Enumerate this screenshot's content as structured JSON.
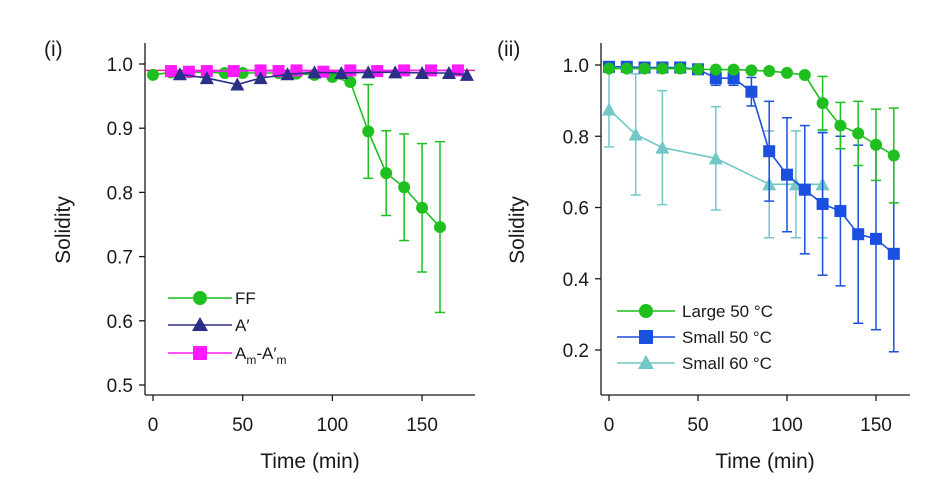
{
  "chart_data": [
    {
      "type": "line",
      "panel_label": "(i)",
      "xlabel": "Time (min)",
      "ylabel": "Solidity",
      "xlim": [
        -5,
        180
      ],
      "ylim": [
        0.48,
        1.02
      ],
      "xticks": [
        0,
        50,
        100,
        150
      ],
      "yticks": [
        0.5,
        0.6,
        0.7,
        0.8,
        0.9,
        1.0
      ],
      "reference_line": {
        "y": 0.99,
        "color": "#e8209a"
      },
      "legend_position": "bottom-left",
      "series": [
        {
          "name": "FF",
          "marker": "circle",
          "color": "#1fbf1f",
          "x": [
            0,
            10,
            20,
            30,
            40,
            50,
            60,
            70,
            80,
            90,
            100,
            110,
            120,
            130,
            140,
            150,
            160
          ],
          "y": [
            0.983,
            0.987,
            0.987,
            0.987,
            0.986,
            0.986,
            0.986,
            0.986,
            0.985,
            0.983,
            0.98,
            0.972,
            0.895,
            0.83,
            0.808,
            0.776,
            0.746
          ],
          "err": [
            0,
            0,
            0,
            0,
            0,
            0,
            0,
            0,
            0,
            0,
            0,
            0,
            0.073,
            0.066,
            0.083,
            0.1,
            0.133
          ]
        },
        {
          "name": "A′",
          "marker": "triangle",
          "color": "#2b2f86",
          "x": [
            15,
            30,
            47,
            60,
            75,
            90,
            105,
            120,
            135,
            150,
            165,
            175
          ],
          "y": [
            0.984,
            0.978,
            0.968,
            0.978,
            0.984,
            0.987,
            0.986,
            0.987,
            0.987,
            0.986,
            0.986,
            0.983
          ],
          "err": [
            0,
            0,
            0,
            0,
            0,
            0,
            0,
            0,
            0,
            0,
            0,
            0
          ]
        },
        {
          "name": "Am-A′m",
          "marker": "square",
          "color": "#ff1aff",
          "x": [
            10,
            20,
            30,
            45,
            60,
            70,
            80,
            95,
            110,
            125,
            140,
            155,
            170
          ],
          "y": [
            0.989,
            0.988,
            0.989,
            0.989,
            0.99,
            0.989,
            0.99,
            0.988,
            0.99,
            0.989,
            0.99,
            0.99,
            0.99
          ],
          "err": [
            0,
            0,
            0,
            0,
            0,
            0,
            0,
            0,
            0,
            0,
            0,
            0,
            0
          ]
        }
      ],
      "legend": [
        {
          "main": "FF",
          "sub1": "",
          "mid": "",
          "sub2": ""
        },
        {
          "main": "A′",
          "sub1": "",
          "mid": "",
          "sub2": ""
        },
        {
          "main": "A",
          "sub1": "m",
          "mid": "-A′",
          "sub2": "m"
        }
      ]
    },
    {
      "type": "line",
      "panel_label": "(ii)",
      "xlabel": "Time (min)",
      "ylabel": "Solidity",
      "xlim": [
        -5,
        170
      ],
      "ylim": [
        0.11,
        1.02
      ],
      "xticks": [
        0,
        50,
        100,
        150
      ],
      "yticks": [
        0.2,
        0.4,
        0.6,
        0.8,
        1.0
      ],
      "legend_position": "bottom-left",
      "series": [
        {
          "name": "Large 50 °C",
          "marker": "circle",
          "color": "#1fbf1f",
          "x": [
            0,
            10,
            20,
            30,
            40,
            50,
            60,
            70,
            80,
            90,
            100,
            110,
            120,
            130,
            140,
            150,
            160
          ],
          "y": [
            0.99,
            0.99,
            0.99,
            0.99,
            0.99,
            0.988,
            0.987,
            0.987,
            0.985,
            0.983,
            0.978,
            0.972,
            0.893,
            0.83,
            0.808,
            0.776,
            0.746
          ],
          "err": [
            0,
            0,
            0,
            0,
            0,
            0,
            0,
            0,
            0,
            0,
            0,
            0,
            0.075,
            0.065,
            0.09,
            0.1,
            0.133
          ]
        },
        {
          "name": "Small 50 °C",
          "marker": "square",
          "color": "#1a4fe0",
          "x": [
            0,
            10,
            20,
            30,
            40,
            50,
            60,
            70,
            80,
            90,
            100,
            110,
            120,
            130,
            140,
            150,
            160
          ],
          "y": [
            0.995,
            0.995,
            0.993,
            0.993,
            0.993,
            0.988,
            0.963,
            0.963,
            0.925,
            0.758,
            0.692,
            0.65,
            0.61,
            0.59,
            0.525,
            0.512,
            0.47
          ],
          "err": [
            0,
            0,
            0,
            0,
            0,
            0,
            0.02,
            0.02,
            0.04,
            0.14,
            0.16,
            0.18,
            0.2,
            0.21,
            0.25,
            0.255,
            0.275
          ]
        },
        {
          "name": "Small 60 °C",
          "marker": "triangle",
          "color": "#72c7c7",
          "x": [
            0,
            15,
            30,
            60,
            90,
            105,
            120
          ],
          "y": [
            0.875,
            0.805,
            0.768,
            0.738,
            0.665,
            0.665,
            0.665
          ],
          "err": [
            0.105,
            0.17,
            0.16,
            0.145,
            0.15,
            0.15,
            0.15
          ]
        }
      ],
      "legend": [
        {
          "main": "Large 50 °C"
        },
        {
          "main": "Small 50 °C"
        },
        {
          "main": "Small 60 °C"
        }
      ]
    }
  ]
}
